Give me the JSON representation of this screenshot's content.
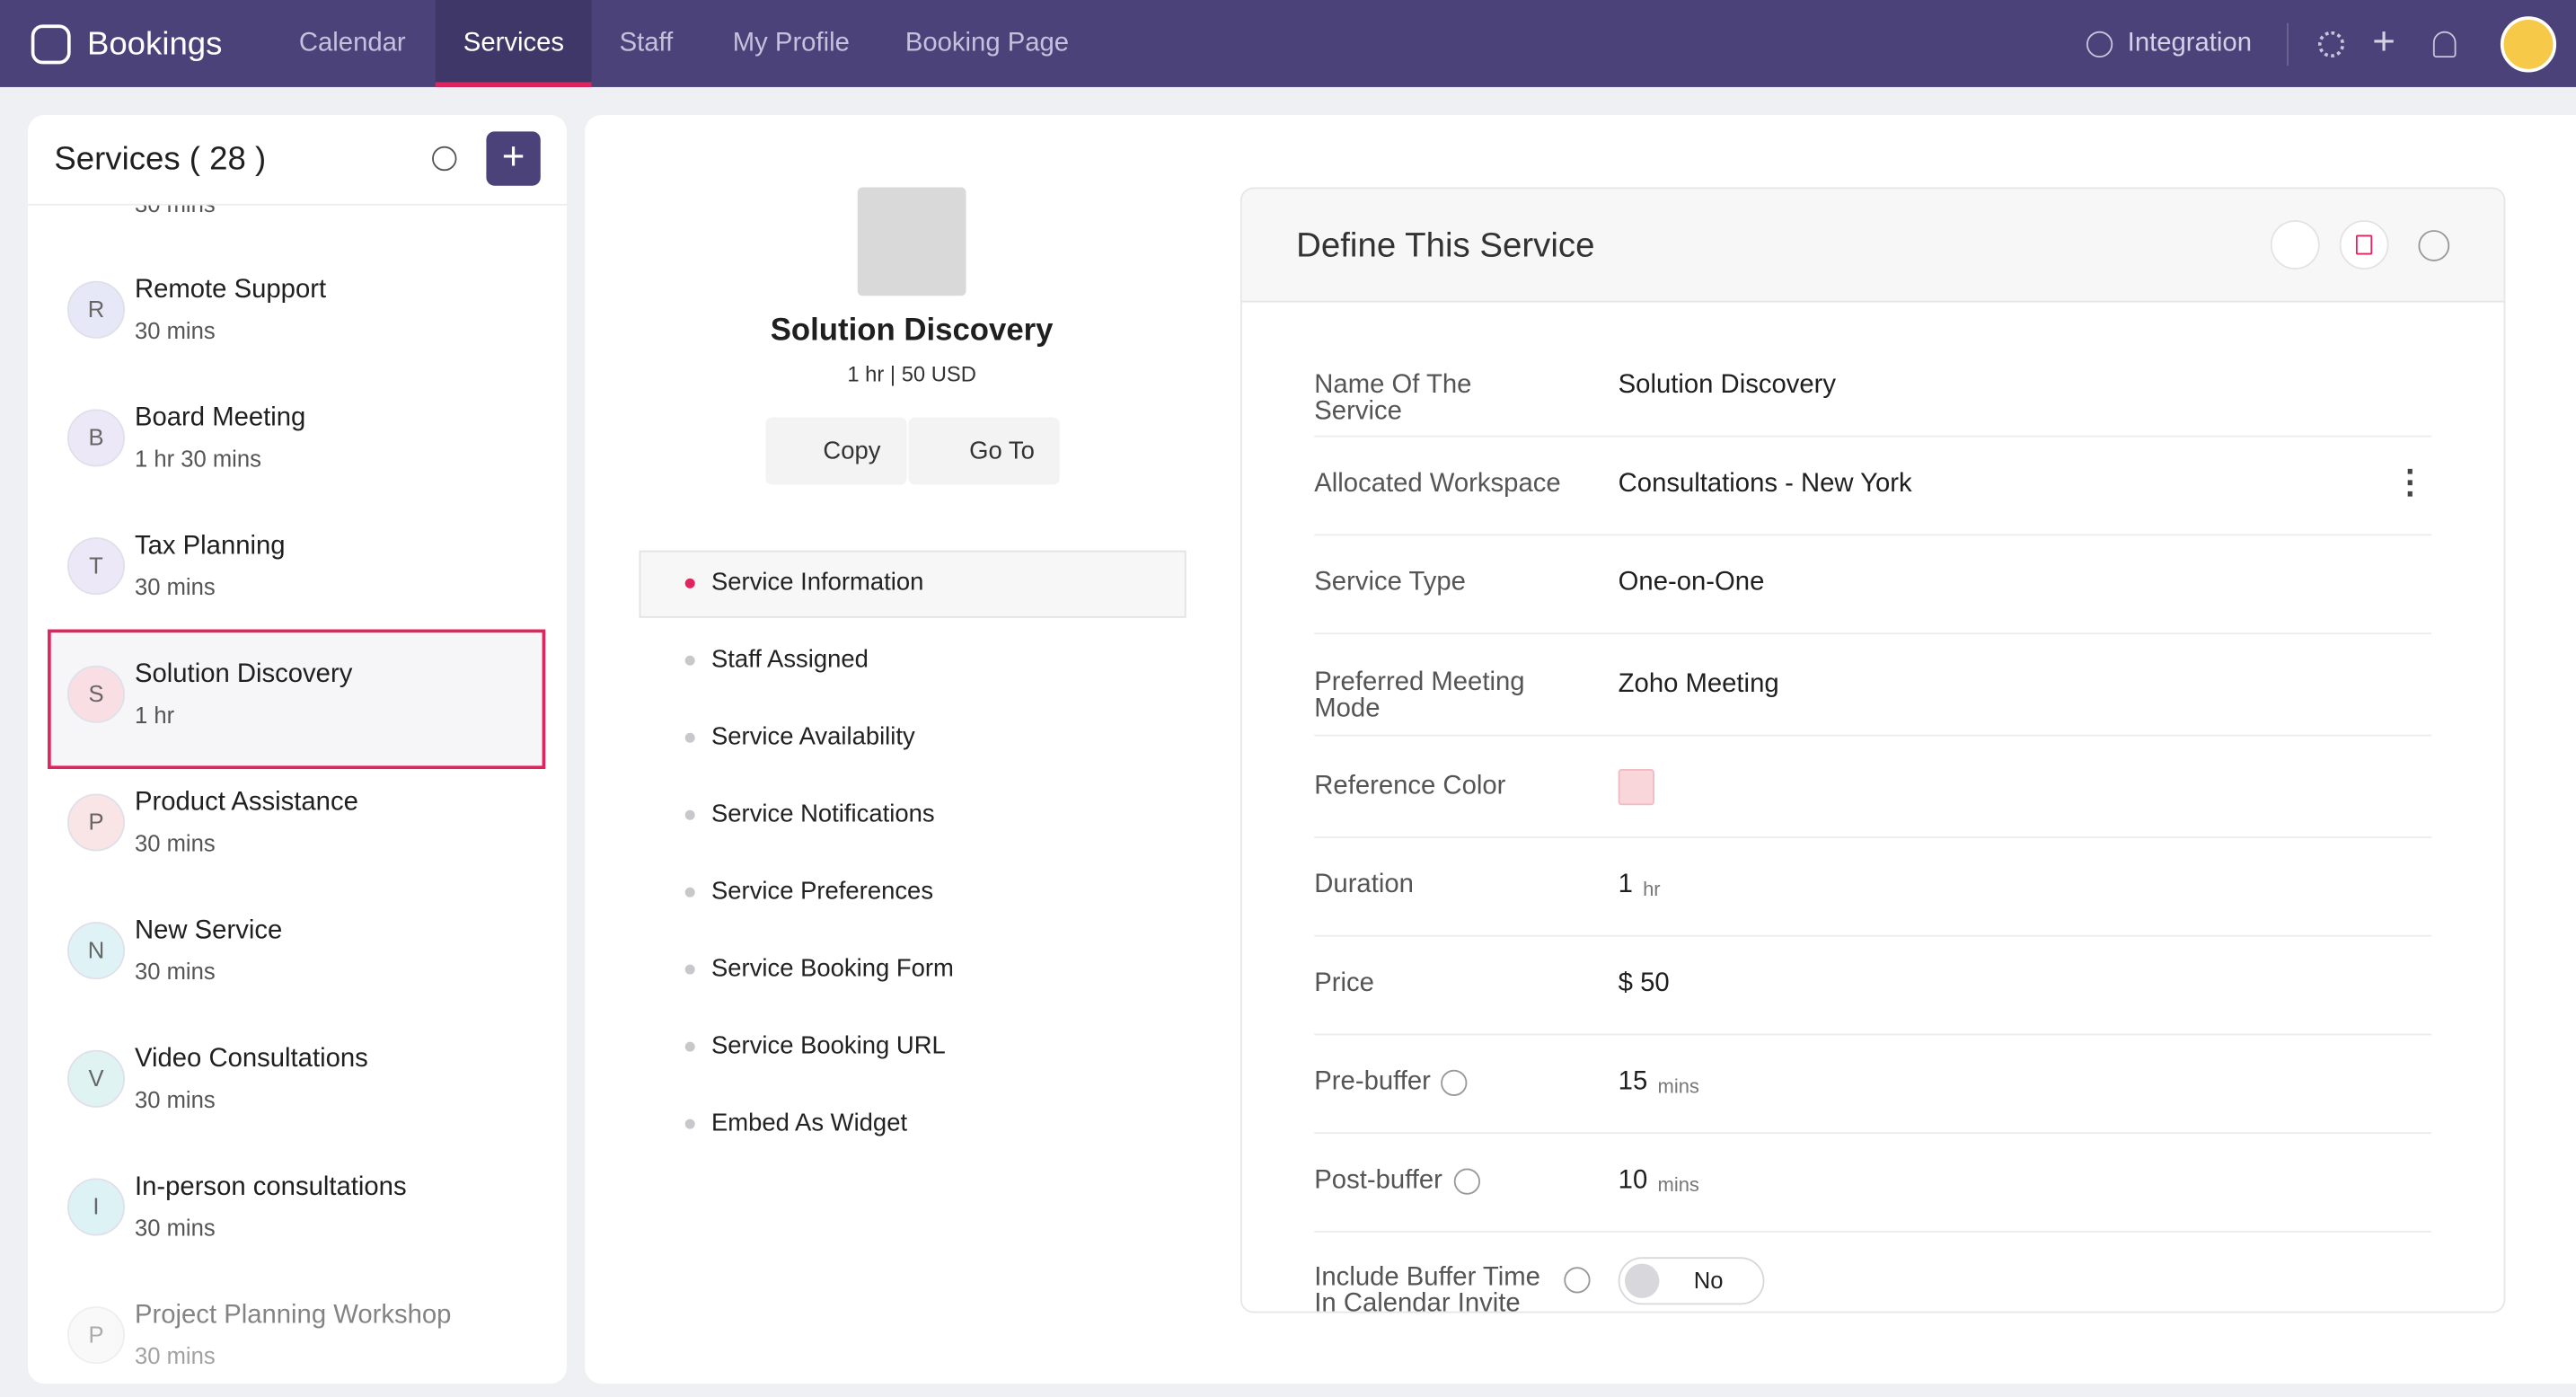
{
  "nav": {
    "brand": "Bookings",
    "tabs": [
      "Calendar",
      "Services",
      "Staff",
      "My Profile",
      "Booking Page"
    ],
    "integration": "Integration"
  },
  "sidebar": {
    "title": "Services ( 28 )",
    "partial": "30 mins",
    "services": [
      {
        "initial": "R",
        "name": "Remote Support",
        "duration": "30 mins",
        "color": "#e6e8f8"
      },
      {
        "initial": "B",
        "name": "Board Meeting",
        "duration": "1 hr 30 mins",
        "color": "#ece8f8"
      },
      {
        "initial": "T",
        "name": "Tax Planning",
        "duration": "30 mins",
        "color": "#ece8f8"
      },
      {
        "initial": "S",
        "name": "Solution Discovery",
        "duration": "1 hr",
        "color": "#f9dfe3"
      },
      {
        "initial": "P",
        "name": "Product Assistance",
        "duration": "30 mins",
        "color": "#f9e4e6"
      },
      {
        "initial": "N",
        "name": "New Service",
        "duration": "30 mins",
        "color": "#dff3f7"
      },
      {
        "initial": "V",
        "name": "Video Consultations",
        "duration": "30 mins",
        "color": "#dff3f3"
      },
      {
        "initial": "I",
        "name": "In-person consultations",
        "duration": "30 mins",
        "color": "#ddf2f5"
      },
      {
        "initial": "P",
        "name": "Project Planning Workshop",
        "duration": "30 mins",
        "color": "#f4f4f4"
      }
    ]
  },
  "detail": {
    "name": "Solution Discovery",
    "meta": "1 hr | 50 USD",
    "copy": "Copy",
    "goto": "Go To",
    "menu": [
      "Service Information",
      "Staff Assigned",
      "Service Availability",
      "Service Notifications",
      "Service Preferences",
      "Service Booking Form",
      "Service Booking URL",
      "Embed As Widget"
    ]
  },
  "define": {
    "title": "Define This Service",
    "fields": [
      {
        "label": "Name Of The Service",
        "value": "Solution Discovery"
      },
      {
        "label": "Allocated Workspace",
        "value": "Consultations - New York"
      },
      {
        "label": "Service Type",
        "value": "One-on-One"
      },
      {
        "label": "Preferred Meeting Mode",
        "value": "Zoho Meeting"
      },
      {
        "label": "Reference Color"
      },
      {
        "label": "Duration",
        "value": "1",
        "unit": "hr"
      },
      {
        "label": "Price",
        "value": "$ 50"
      },
      {
        "label": "Pre-buffer",
        "value": "15",
        "unit": "mins"
      },
      {
        "label": "Post-buffer",
        "value": "10",
        "unit": "mins"
      },
      {
        "label": "Include Buffer Time In Calendar Invite",
        "value": "No"
      }
    ]
  }
}
